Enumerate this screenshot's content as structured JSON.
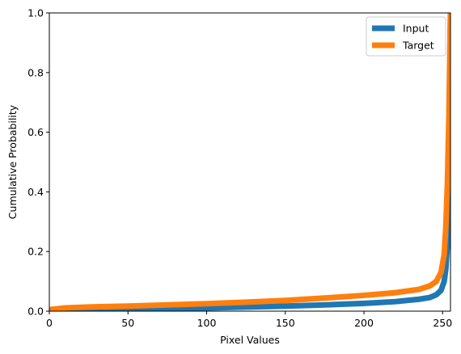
{
  "chart_data": {
    "type": "line",
    "title": "",
    "xlabel": "Pixel Values",
    "ylabel": "Cumulative Probability",
    "xlim": [
      0,
      255
    ],
    "ylim": [
      0,
      1
    ],
    "xticks": [
      0,
      50,
      100,
      150,
      200,
      250
    ],
    "yticks": [
      0.0,
      0.2,
      0.4,
      0.6,
      0.8,
      1.0
    ],
    "ytick_labels": [
      "0.0",
      "0.2",
      "0.4",
      "0.6",
      "0.8",
      "1.0"
    ],
    "grid": false,
    "legend": "top-right",
    "series": [
      {
        "name": "Input",
        "color": "#1f77b4",
        "x": [
          0,
          25,
          50,
          75,
          100,
          125,
          150,
          175,
          200,
          220,
          235,
          242,
          246,
          249,
          251,
          252,
          253,
          254,
          255
        ],
        "y": [
          0.002,
          0.004,
          0.006,
          0.008,
          0.011,
          0.014,
          0.017,
          0.021,
          0.026,
          0.032,
          0.04,
          0.046,
          0.055,
          0.07,
          0.1,
          0.14,
          0.22,
          0.4,
          1.0
        ]
      },
      {
        "name": "Target",
        "color": "#ff7f0e",
        "x": [
          0,
          10,
          25,
          50,
          75,
          100,
          125,
          150,
          175,
          200,
          220,
          235,
          242,
          246,
          249,
          251,
          252,
          253,
          254,
          255
        ],
        "y": [
          0.005,
          0.011,
          0.014,
          0.017,
          0.021,
          0.025,
          0.03,
          0.036,
          0.044,
          0.053,
          0.062,
          0.073,
          0.085,
          0.1,
          0.13,
          0.19,
          0.28,
          0.42,
          0.65,
          1.0
        ]
      }
    ]
  }
}
